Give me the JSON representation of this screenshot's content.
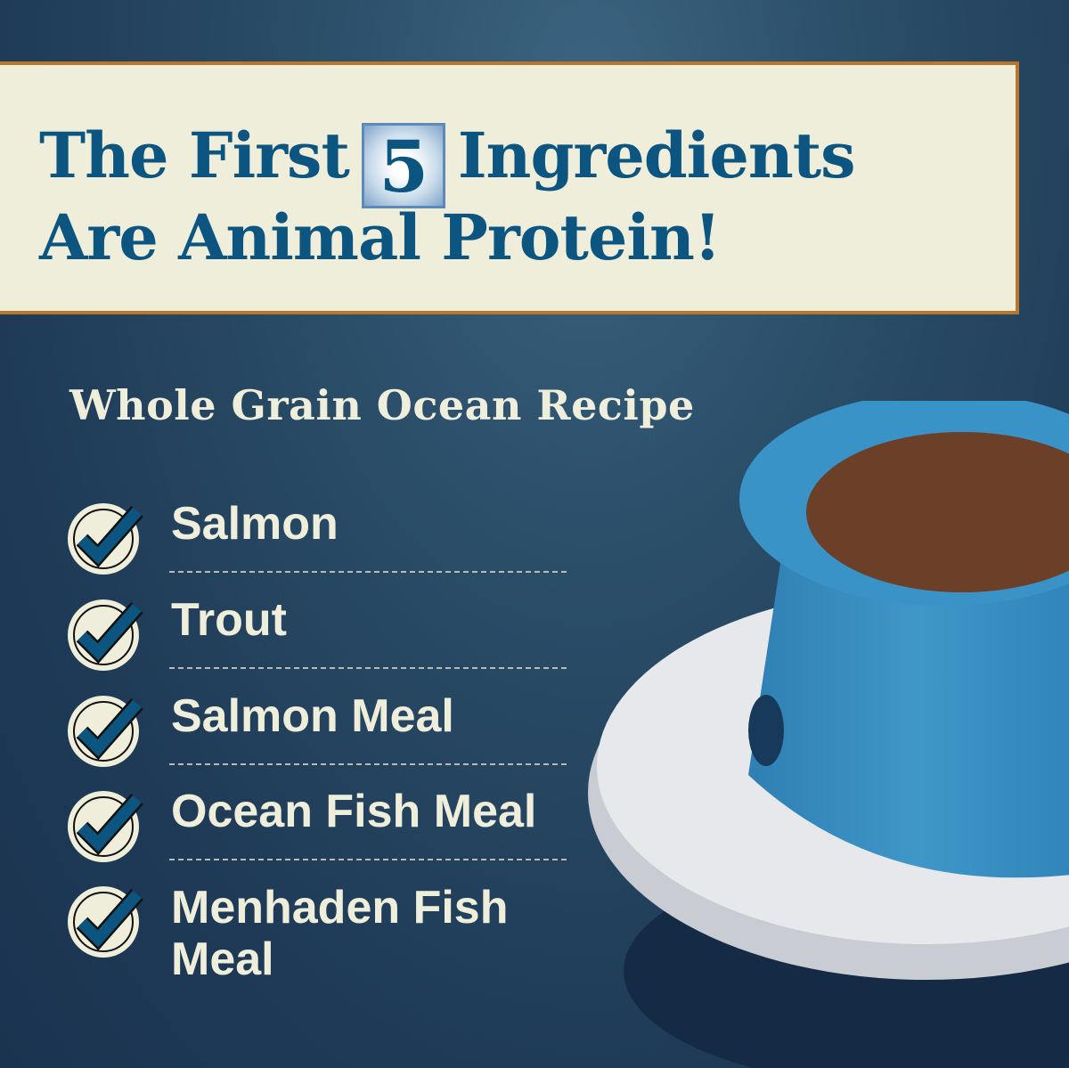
{
  "headline": {
    "line1_before": "The First",
    "number": "5",
    "line1_after": "Ingredients",
    "line2": "Are Animal Protein!"
  },
  "recipe_name": "Whole Grain Ocean Recipe",
  "ingredients": [
    {
      "label": "Salmon",
      "icon": "check-circle-icon"
    },
    {
      "label": "Trout",
      "icon": "check-circle-icon"
    },
    {
      "label": "Salmon Meal",
      "icon": "check-circle-icon"
    },
    {
      "label": "Ocean Fish Meal",
      "icon": "check-circle-icon"
    },
    {
      "label": "Menhaden Fish Meal",
      "icon": "check-circle-icon"
    }
  ],
  "colors": {
    "banner_bg": "#efeedb",
    "banner_border": "#b8772c",
    "headline_text": "#0b5580",
    "background": "#1f3b57",
    "bowl": "#3b8fc2"
  }
}
